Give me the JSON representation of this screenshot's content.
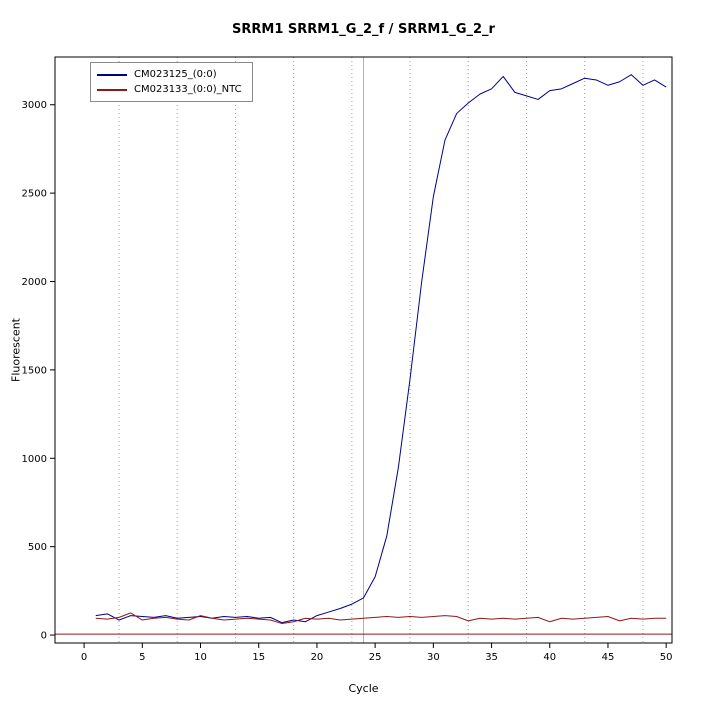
{
  "chart_data": {
    "type": "line",
    "title": "SRRM1 SRRM1_G_2_f / SRRM1_G_2_r",
    "xlabel": "Cycle",
    "ylabel": "Fluorescent",
    "xlim": [
      -2.5,
      50.5
    ],
    "ylim": [
      -45,
      3270
    ],
    "xticks": [
      0,
      5,
      10,
      15,
      20,
      25,
      30,
      35,
      40,
      45,
      50
    ],
    "yticks": [
      0,
      500,
      1000,
      1500,
      2000,
      2500,
      3000
    ],
    "grid": {
      "vertical_x": [
        3,
        8,
        13,
        18,
        23,
        28,
        33,
        38,
        43,
        48
      ],
      "color": "#f08080",
      "style": "dotted"
    },
    "threshold_line": {
      "x": 24,
      "color": "#00ffff"
    },
    "baseline_line": {
      "y": 5,
      "color": "#8b1a1a"
    },
    "legend_position": "top-left",
    "x": [
      1,
      2,
      3,
      4,
      5,
      6,
      7,
      8,
      9,
      10,
      11,
      12,
      13,
      14,
      15,
      16,
      17,
      18,
      19,
      20,
      21,
      22,
      23,
      24,
      25,
      26,
      27,
      28,
      29,
      30,
      31,
      32,
      33,
      34,
      35,
      36,
      37,
      38,
      39,
      40,
      41,
      42,
      43,
      44,
      45,
      46,
      47,
      48,
      49,
      50
    ],
    "series": [
      {
        "name": "CM023125_(0:0)",
        "color": "#00008b",
        "values": [
          110,
          120,
          85,
          110,
          105,
          100,
          110,
          95,
          100,
          105,
          95,
          105,
          100,
          105,
          95,
          100,
          70,
          85,
          75,
          110,
          130,
          150,
          175,
          210,
          330,
          560,
          950,
          1450,
          2000,
          2480,
          2800,
          2950,
          3010,
          3060,
          3090,
          3160,
          3070,
          3050,
          3030,
          3080,
          3090,
          3120,
          3150,
          3140,
          3110,
          3130,
          3170,
          3110,
          3140,
          3100
        ]
      },
      {
        "name": "CM023133_(0:0)_NTC",
        "color": "#8b1a1a",
        "values": [
          95,
          90,
          100,
          125,
          85,
          95,
          100,
          90,
          85,
          110,
          95,
          85,
          90,
          95,
          90,
          85,
          65,
          75,
          95,
          90,
          95,
          85,
          90,
          95,
          100,
          105,
          100,
          105,
          100,
          105,
          110,
          105,
          80,
          95,
          90,
          95,
          90,
          95,
          100,
          75,
          95,
          90,
          95,
          100,
          105,
          80,
          95,
          90,
          95,
          95
        ]
      }
    ]
  }
}
